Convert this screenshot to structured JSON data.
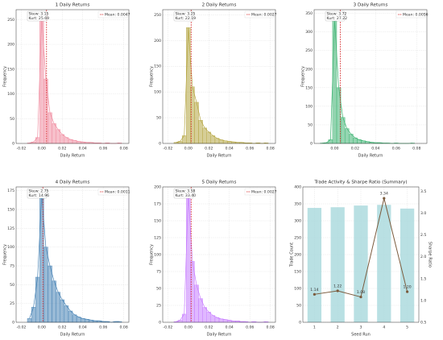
{
  "chart_data": [
    {
      "type": "histogram",
      "title": "1 Daily Returns",
      "xlabel": "Daily Return",
      "ylabel": "Frequency",
      "color": "#f08ca0",
      "bins": [
        -0.014,
        -0.01,
        -0.006,
        -0.002,
        0.002,
        0.006,
        0.01,
        0.014,
        0.018,
        0.022,
        0.026,
        0.03,
        0.034,
        0.038,
        0.042,
        0.046,
        0.05,
        0.054,
        0.058,
        0.062,
        0.066,
        0.07,
        0.074,
        0.078
      ],
      "counts": [
        1,
        3,
        12,
        255,
        130,
        62,
        40,
        28,
        18,
        12,
        8,
        6,
        4,
        3,
        2,
        2,
        1,
        1,
        0,
        1,
        0,
        0,
        1
      ],
      "mean": {
        "value": 0.0047,
        "label": "Mean: 0.0047"
      },
      "stats": [
        "Skew: 3.15",
        "Kurt: 25.69"
      ],
      "xlim": [
        -0.025,
        0.085
      ],
      "xticks": [
        {
          "value": -0.02,
          "label": "-0.02"
        },
        {
          "value": 0,
          "label": "0.00"
        },
        {
          "value": 0.02,
          "label": "0.02"
        },
        {
          "value": 0.04,
          "label": "0.04"
        },
        {
          "value": 0.06,
          "label": "0.06"
        },
        {
          "value": 0.08,
          "label": "0.08"
        }
      ],
      "ylim": [
        0,
        270
      ],
      "yticks": [
        0,
        50,
        100,
        150,
        200,
        250
      ],
      "grid": true
    },
    {
      "type": "histogram",
      "title": "2 Daily Returns",
      "xlabel": "Daily Return",
      "ylabel": "Frequency",
      "color": "#b5a642",
      "bins": [
        -0.014,
        -0.01,
        -0.006,
        -0.002,
        0.002,
        0.006,
        0.01,
        0.014,
        0.018,
        0.022,
        0.026,
        0.03,
        0.034,
        0.038,
        0.042,
        0.046,
        0.05,
        0.054,
        0.058,
        0.062,
        0.066,
        0.07,
        0.074,
        0.078
      ],
      "counts": [
        2,
        4,
        15,
        225,
        110,
        80,
        45,
        30,
        22,
        15,
        10,
        7,
        5,
        4,
        3,
        2,
        2,
        1,
        1,
        0,
        1,
        0,
        1
      ],
      "mean": {
        "value": 0.0027,
        "label": "Mean: 0.0027"
      },
      "stats": [
        "Skew: 3.25",
        "Kurt: 22.19"
      ],
      "xlim": [
        -0.025,
        0.085
      ],
      "xticks": [
        {
          "value": -0.02,
          "label": "-0.02"
        },
        {
          "value": 0,
          "label": "0.00"
        },
        {
          "value": 0.02,
          "label": "0.02"
        },
        {
          "value": 0.04,
          "label": "0.04"
        },
        {
          "value": 0.06,
          "label": "0.06"
        },
        {
          "value": 0.08,
          "label": "0.08"
        }
      ],
      "ylim": [
        0,
        260
      ],
      "yticks": [
        0,
        50,
        100,
        150,
        200,
        250
      ],
      "grid": true
    },
    {
      "type": "histogram",
      "title": "3 Daily Returns",
      "xlabel": "Daily Return",
      "ylabel": "Frequency",
      "color": "#3cb371",
      "bins": [
        -0.014,
        -0.01,
        -0.006,
        -0.002,
        0.002,
        0.006,
        0.01,
        0.014,
        0.018,
        0.022,
        0.026,
        0.03,
        0.034,
        0.038,
        0.042,
        0.046,
        0.05,
        0.054,
        0.058,
        0.062,
        0.066,
        0.07,
        0.074,
        0.078
      ],
      "counts": [
        1,
        2,
        10,
        330,
        150,
        70,
        40,
        25,
        15,
        10,
        7,
        5,
        3,
        2,
        2,
        1,
        1,
        0,
        1,
        0,
        0,
        0,
        1
      ],
      "mean": {
        "value": 0.0056,
        "label": "Mean: 0.0056"
      },
      "stats": [
        "Skew: 3.72",
        "Kurt: 27.22"
      ],
      "xlim": [
        -0.02,
        0.09
      ],
      "xticks": [
        {
          "value": 0,
          "label": "0.00"
        },
        {
          "value": 0.02,
          "label": "0.02"
        },
        {
          "value": 0.04,
          "label": "0.04"
        },
        {
          "value": 0.06,
          "label": "0.06"
        },
        {
          "value": 0.08,
          "label": "0.08"
        }
      ],
      "ylim": [
        0,
        360
      ],
      "yticks": [
        0,
        50,
        100,
        150,
        200,
        250,
        300,
        350
      ],
      "grid": true
    },
    {
      "type": "histogram",
      "title": "4 Daily Returns",
      "xlabel": "Daily Return",
      "ylabel": "Frequency",
      "color": "#4682b4",
      "bins": [
        -0.014,
        -0.01,
        -0.006,
        -0.002,
        0.002,
        0.006,
        0.01,
        0.014,
        0.018,
        0.022,
        0.026,
        0.03,
        0.034,
        0.038,
        0.042,
        0.046,
        0.05,
        0.054,
        0.058,
        0.062,
        0.066,
        0.07,
        0.074,
        0.078
      ],
      "counts": [
        5,
        20,
        60,
        170,
        100,
        75,
        55,
        40,
        30,
        22,
        15,
        10,
        7,
        5,
        4,
        3,
        2,
        2,
        1,
        1,
        0,
        1,
        1
      ],
      "mean": {
        "value": 0.0011,
        "label": "Mean: 0.0011"
      },
      "stats": [
        "Skew: 2.75",
        "Kurt: 14.96"
      ],
      "xlim": [
        -0.025,
        0.085
      ],
      "xticks": [
        {
          "value": -0.02,
          "label": "-0.02"
        },
        {
          "value": 0,
          "label": "0.00"
        },
        {
          "value": 0.02,
          "label": "0.02"
        },
        {
          "value": 0.04,
          "label": "0.04"
        },
        {
          "value": 0.06,
          "label": "0.06"
        },
        {
          "value": 0.08,
          "label": "0.08"
        }
      ],
      "ylim": [
        0,
        180
      ],
      "yticks": [
        0,
        25,
        50,
        75,
        100,
        125,
        150,
        175
      ],
      "grid": true
    },
    {
      "type": "histogram",
      "title": "5 Daily Returns",
      "xlabel": "Daily Return",
      "ylabel": "Frequency",
      "color": "#c77dff",
      "bins": [
        -0.014,
        -0.01,
        -0.006,
        -0.002,
        0.002,
        0.006,
        0.01,
        0.014,
        0.018,
        0.022,
        0.026,
        0.03,
        0.034,
        0.038,
        0.042,
        0.046,
        0.05,
        0.054,
        0.058,
        0.062,
        0.066,
        0.07,
        0.074,
        0.078
      ],
      "counts": [
        1,
        3,
        12,
        190,
        90,
        55,
        35,
        22,
        15,
        10,
        7,
        5,
        4,
        3,
        2,
        2,
        1,
        1,
        0,
        1,
        0,
        0,
        1
      ],
      "mean": {
        "value": 0.0027,
        "label": "Mean: 0.0027"
      },
      "stats": [
        "Skew: 3.58",
        "Kurt: 33.40"
      ],
      "xlim": [
        -0.025,
        0.085
      ],
      "xticks": [
        {
          "value": -0.02,
          "label": "-0.02"
        },
        {
          "value": 0,
          "label": "0.00"
        },
        {
          "value": 0.02,
          "label": "0.02"
        },
        {
          "value": 0.04,
          "label": "0.04"
        },
        {
          "value": 0.06,
          "label": "0.06"
        },
        {
          "value": 0.08,
          "label": "0.08"
        }
      ],
      "ylim": [
        0,
        200
      ],
      "yticks": [
        0,
        25,
        50,
        75,
        100,
        125,
        150,
        175,
        200
      ],
      "grid": true
    },
    {
      "type": "bar_line",
      "title": "Trade Activity & Sharpe Ratio (Summary)",
      "xlabel": "Seed Run",
      "ylabel": "Trade Count",
      "y2label": "Sharpe Ratio",
      "categories": [
        "1",
        "2",
        "3",
        "4",
        "5"
      ],
      "series": [
        {
          "type": "bar",
          "color": "#a8d8dc",
          "values": [
            338,
            340,
            345,
            347,
            336
          ]
        },
        {
          "type": "line",
          "axis": "y2",
          "color": "#7a5a3c",
          "values": [
            1.14,
            1.22,
            1.08,
            3.34,
            1.2
          ],
          "value_labels": [
            "1.14",
            "1.22",
            "1.08",
            "3.34",
            "1.20"
          ]
        }
      ],
      "ylim": [
        0,
        400
      ],
      "yticks": [
        0,
        50,
        100,
        150,
        200,
        250,
        300,
        350,
        400
      ],
      "y2lim": [
        0.5,
        3.6
      ],
      "y2ticks": [
        0.5,
        {
          "value": 1,
          "label": "1.0"
        },
        1.5,
        {
          "value": 2,
          "label": "2.0"
        },
        2.5,
        {
          "value": 3,
          "label": "3.0"
        },
        3.5
      ],
      "grid": true
    }
  ]
}
